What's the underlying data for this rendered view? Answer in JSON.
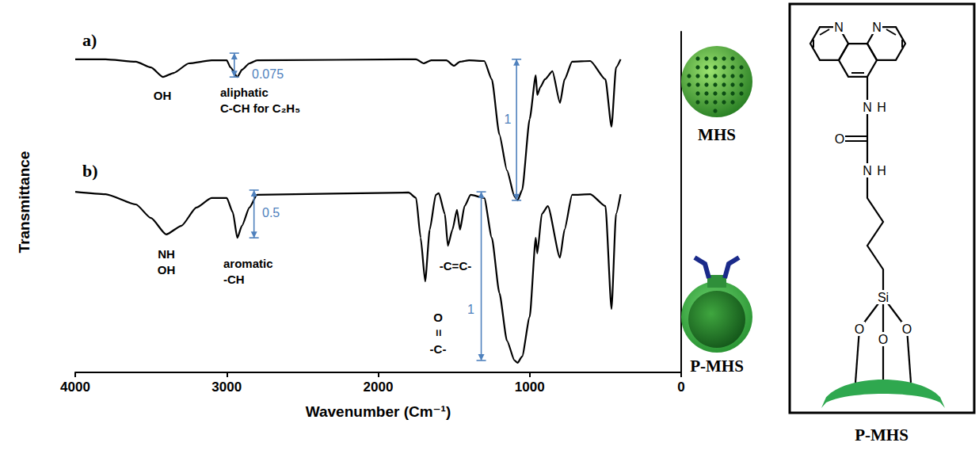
{
  "chart_data": {
    "type": "line",
    "x_label": "Wavenumber (Cm⁻¹)",
    "y_label": "Transmittance",
    "xlim": [
      4000,
      0
    ],
    "xticks": [
      4000,
      3000,
      2000,
      1000,
      0
    ],
    "ylim": [
      0,
      1
    ],
    "tick_labels": "x",
    "grid": false,
    "series": [
      {
        "name": "a)",
        "color": "#000000",
        "x": [
          4000,
          3800,
          3600,
          3500,
          3420,
          3350,
          3250,
          3100,
          3000,
          2975,
          2930,
          2900,
          2850,
          2800,
          1750,
          1700,
          1650,
          1550,
          1500,
          1460,
          1400,
          1300,
          1250,
          1200,
          1150,
          1100,
          1080,
          1050,
          1000,
          960,
          950,
          930,
          900,
          850,
          800,
          770,
          720,
          600,
          500,
          460,
          430,
          400
        ],
        "values": [
          0.919,
          0.919,
          0.912,
          0.895,
          0.867,
          0.879,
          0.907,
          0.916,
          0.916,
          0.895,
          0.867,
          0.888,
          0.907,
          0.916,
          0.919,
          0.907,
          0.916,
          0.916,
          0.9,
          0.912,
          0.916,
          0.914,
          0.86,
          0.698,
          0.593,
          0.516,
          0.505,
          0.535,
          0.744,
          0.872,
          0.814,
          0.837,
          0.86,
          0.884,
          0.791,
          0.86,
          0.912,
          0.914,
          0.86,
          0.721,
          0.895,
          0.919
        ]
      },
      {
        "name": "b)",
        "color": "#000000",
        "x": [
          4000,
          3800,
          3600,
          3500,
          3400,
          3300,
          3200,
          3100,
          3000,
          2960,
          2930,
          2900,
          2850,
          2800,
          1800,
          1750,
          1720,
          1690,
          1660,
          1620,
          1600,
          1560,
          1540,
          1510,
          1480,
          1460,
          1430,
          1390,
          1300,
          1250,
          1200,
          1150,
          1100,
          1080,
          1050,
          1000,
          960,
          950,
          920,
          880,
          800,
          770,
          720,
          600,
          500,
          460,
          430,
          400
        ],
        "values": [
          0.53,
          0.523,
          0.493,
          0.453,
          0.405,
          0.43,
          0.484,
          0.512,
          0.512,
          0.47,
          0.395,
          0.43,
          0.484,
          0.521,
          0.528,
          0.512,
          0.395,
          0.267,
          0.419,
          0.521,
          0.526,
          0.465,
          0.372,
          0.419,
          0.477,
          0.419,
          0.488,
          0.521,
          0.512,
          0.395,
          0.233,
          0.093,
          0.035,
          0.028,
          0.047,
          0.163,
          0.395,
          0.349,
          0.465,
          0.488,
          0.337,
          0.419,
          0.521,
          0.523,
          0.488,
          0.186,
          0.465,
          0.523
        ]
      }
    ],
    "annotations": [
      "OH",
      "aliphatic\nC-CH for C₂H₅",
      "NH\nOH",
      "aromatic\n-CH",
      "O\n=\n-C-",
      "-C=C-"
    ],
    "scale_bars": [
      {
        "value": 0.075,
        "x": 2950,
        "from": 0.937,
        "to": 0.867
      },
      {
        "value": 1,
        "x": 1087,
        "from": 0.919,
        "to": 0.505
      },
      {
        "value": 0.5,
        "x": 2820,
        "from": 0.535,
        "to": 0.395
      },
      {
        "value": 1,
        "x": 1320,
        "from": 0.53,
        "to": 0.035
      }
    ],
    "samples": [
      "MHS",
      "P-MHS"
    ]
  },
  "structure": {
    "atoms": [
      "N",
      "N",
      "N",
      "H",
      "O",
      "N",
      "H",
      "Si",
      "O",
      "O",
      "O"
    ],
    "caption": "P-MHS"
  }
}
